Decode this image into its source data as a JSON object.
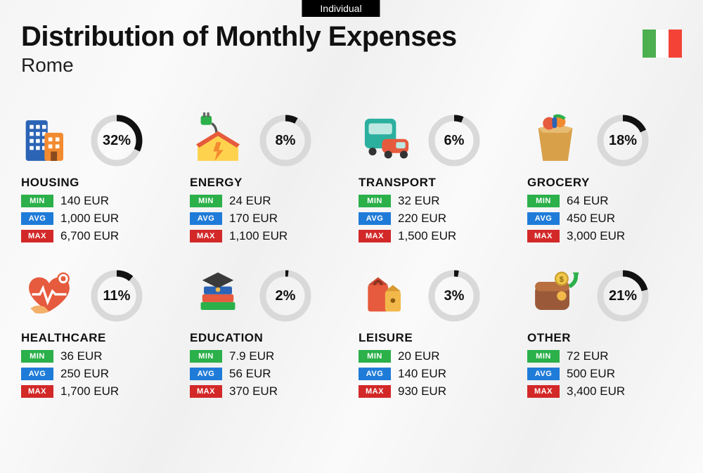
{
  "badge": "Individual",
  "title": "Distribution of Monthly Expenses",
  "city": "Rome",
  "flag_colors": {
    "left": "#4caf50",
    "mid": "#ffffff",
    "right": "#f44336"
  },
  "labels": {
    "min": "MIN",
    "avg": "AVG",
    "max": "MAX"
  },
  "tag_colors": {
    "min": "#2bb04a",
    "avg": "#1f7bd8",
    "max": "#d32828"
  },
  "donut": {
    "track_color": "#d9d9d9",
    "arc_color": "#111111",
    "stroke_width": 9,
    "radius": 32,
    "pct_fontsize": 20
  },
  "typography": {
    "title_fontsize": 40,
    "subtitle_fontsize": 28,
    "category_fontsize": 17,
    "value_fontsize": 17,
    "tag_fontsize": 11
  },
  "categories": [
    {
      "key": "housing",
      "name": "HOUSING",
      "pct": 32,
      "min": "140 EUR",
      "avg": "1,000 EUR",
      "max": "6,700 EUR",
      "icon": "housing-icon"
    },
    {
      "key": "energy",
      "name": "ENERGY",
      "pct": 8,
      "min": "24 EUR",
      "avg": "170 EUR",
      "max": "1,100 EUR",
      "icon": "energy-icon"
    },
    {
      "key": "transport",
      "name": "TRANSPORT",
      "pct": 6,
      "min": "32 EUR",
      "avg": "220 EUR",
      "max": "1,500 EUR",
      "icon": "transport-icon"
    },
    {
      "key": "grocery",
      "name": "GROCERY",
      "pct": 18,
      "min": "64 EUR",
      "avg": "450 EUR",
      "max": "3,000 EUR",
      "icon": "grocery-icon"
    },
    {
      "key": "healthcare",
      "name": "HEALTHCARE",
      "pct": 11,
      "min": "36 EUR",
      "avg": "250 EUR",
      "max": "1,700 EUR",
      "icon": "healthcare-icon"
    },
    {
      "key": "education",
      "name": "EDUCATION",
      "pct": 2,
      "min": "7.9 EUR",
      "avg": "56 EUR",
      "max": "370 EUR",
      "icon": "education-icon"
    },
    {
      "key": "leisure",
      "name": "LEISURE",
      "pct": 3,
      "min": "20 EUR",
      "avg": "140 EUR",
      "max": "930 EUR",
      "icon": "leisure-icon"
    },
    {
      "key": "other",
      "name": "OTHER",
      "pct": 21,
      "min": "72 EUR",
      "avg": "500 EUR",
      "max": "3,400 EUR",
      "icon": "other-icon"
    }
  ],
  "icons": {
    "housing-icon": {
      "svg": "housing"
    },
    "energy-icon": {
      "svg": "energy"
    },
    "transport-icon": {
      "svg": "transport"
    },
    "grocery-icon": {
      "svg": "grocery"
    },
    "healthcare-icon": {
      "svg": "healthcare"
    },
    "education-icon": {
      "svg": "education"
    },
    "leisure-icon": {
      "svg": "leisure"
    },
    "other-icon": {
      "svg": "other"
    }
  }
}
